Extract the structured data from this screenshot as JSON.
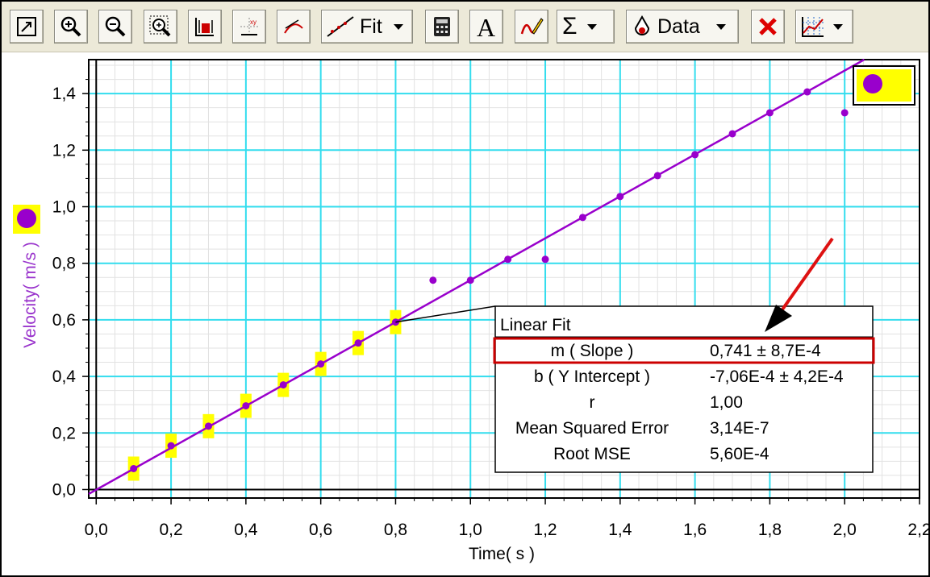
{
  "toolbar": {
    "buttons": [
      {
        "icon": "autoscale-icon"
      },
      {
        "icon": "zoom-in-icon"
      },
      {
        "icon": "zoom-out-icon"
      },
      {
        "icon": "zoom-region-icon"
      },
      {
        "icon": "statistics-icon"
      },
      {
        "icon": "examine-icon"
      },
      {
        "icon": "tangent-icon"
      }
    ],
    "fit_label": "Fit",
    "calculator_icon": "calculator-icon",
    "annotation_icon": "text-annotation-icon",
    "draw_icon": "draw-prediction-icon",
    "sigma_label": "Σ",
    "data_label": "Data",
    "delete_icon": "delete-icon",
    "graph_options_icon": "graph-options-icon"
  },
  "chart_data": {
    "type": "scatter",
    "xlabel": "Time( s )",
    "ylabel": "Velocity( m/s )",
    "xlim": [
      -0.02,
      2.2
    ],
    "ylim": [
      -0.03,
      1.52
    ],
    "x_ticks": [
      "0,0",
      "0,2",
      "0,4",
      "0,6",
      "0,8",
      "1,0",
      "1,2",
      "1,4",
      "1,6",
      "1,8",
      "2,0",
      "2,2"
    ],
    "y_ticks": [
      "0,0",
      "0,2",
      "0,4",
      "0,6",
      "0,8",
      "1,0",
      "1,2",
      "1,4"
    ],
    "grid": true,
    "colors": {
      "series": "#9900cc",
      "highlight": "#ffff00",
      "grid": "#33ddee",
      "arrow": "#dd1111"
    },
    "series": [
      {
        "x": [
          0.1,
          0.2,
          0.3,
          0.4,
          0.5,
          0.6,
          0.7,
          0.8,
          0.9,
          1.0,
          1.1,
          1.2,
          1.3,
          1.4,
          1.5,
          1.6,
          1.7,
          1.8,
          1.9,
          2.0
        ],
        "y": [
          0.074,
          0.155,
          0.224,
          0.296,
          0.37,
          0.444,
          0.518,
          0.592,
          0.74,
          0.74,
          0.814,
          0.814,
          0.962,
          1.036,
          1.11,
          1.184,
          1.258,
          1.332,
          1.406,
          1.332
        ],
        "selected": [
          true,
          true,
          true,
          true,
          true,
          true,
          true,
          true,
          false,
          false,
          false,
          false,
          false,
          false,
          false,
          false,
          false,
          false,
          false,
          false
        ]
      }
    ],
    "fit": {
      "title": "Linear Fit",
      "slope": 0.741,
      "intercept": -0.000706,
      "rows": [
        {
          "label": "m ( Slope )",
          "value": "0,741 ± 8,7E-4",
          "highlighted": true
        },
        {
          "label": "b ( Y Intercept )",
          "value": "-7,06E-4 ± 4,2E-4",
          "highlighted": false
        },
        {
          "label": "r",
          "value": "1,00",
          "highlighted": false
        },
        {
          "label": "Mean Squared Error",
          "value": "3,14E-7",
          "highlighted": false
        },
        {
          "label": "Root MSE",
          "value": "5,60E-4",
          "highlighted": false
        }
      ]
    }
  }
}
